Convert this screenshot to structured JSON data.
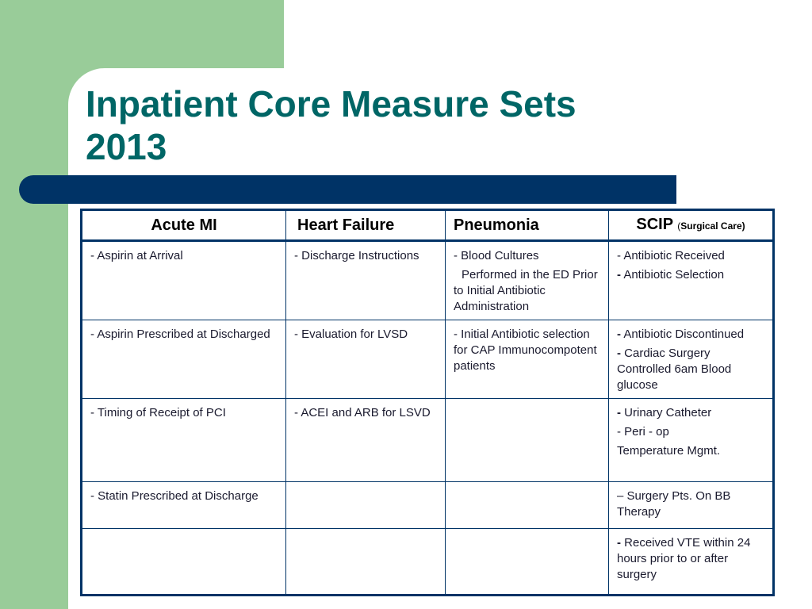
{
  "title": {
    "line1": "Inpatient Core Measure Sets",
    "line2": "2013"
  },
  "colors": {
    "green_band": "#99cc99",
    "title": "#006666",
    "bar": "#003366",
    "table_border": "#003366"
  },
  "table": {
    "headers": {
      "acute_mi": "Acute MI",
      "heart_failure": "Heart Failure",
      "pneumonia": "Pneumonia",
      "scip": "SCIP",
      "scip_sub_open": "(",
      "scip_sub": "Surgical Care)"
    },
    "rows": [
      {
        "acute_mi": "- Aspirin at Arrival",
        "heart_failure": "- Discharge Instructions",
        "pneumonia_1": "- Blood Cultures",
        "pneumonia_2": "Performed in the ED Prior to Initial Antibiotic Administration",
        "scip_1": "- Antibiotic Received",
        "scip_2_dash": "-",
        "scip_2": " Antibiotic Selection"
      },
      {
        "acute_mi": "- Aspirin Prescribed at Discharged",
        "heart_failure": "- Evaluation for LVSD",
        "pneumonia": "- Initial Antibiotic selection for CAP Immunocompotent patients",
        "scip_1_dash": "-",
        "scip_1": " Antibiotic Discontinued",
        "scip_2_dash": "-",
        "scip_2": " Cardiac Surgery Controlled 6am Blood glucose"
      },
      {
        "acute_mi": "- Timing of Receipt of PCI",
        "heart_failure": "- ACEI and ARB for LSVD",
        "pneumonia": "",
        "scip_1_dash": "-",
        "scip_1": " Urinary Catheter",
        "scip_2": "- Peri - op",
        "scip_3": "Temperature Mgmt."
      },
      {
        "acute_mi": "- Statin Prescribed at Discharge",
        "heart_failure": "",
        "pneumonia": "",
        "scip": "–  Surgery  Pts. On BB Therapy"
      },
      {
        "acute_mi": "",
        "heart_failure": "",
        "pneumonia": "",
        "scip_dash": "-",
        "scip": " Received VTE within 24 hours prior to or after surgery"
      }
    ]
  }
}
